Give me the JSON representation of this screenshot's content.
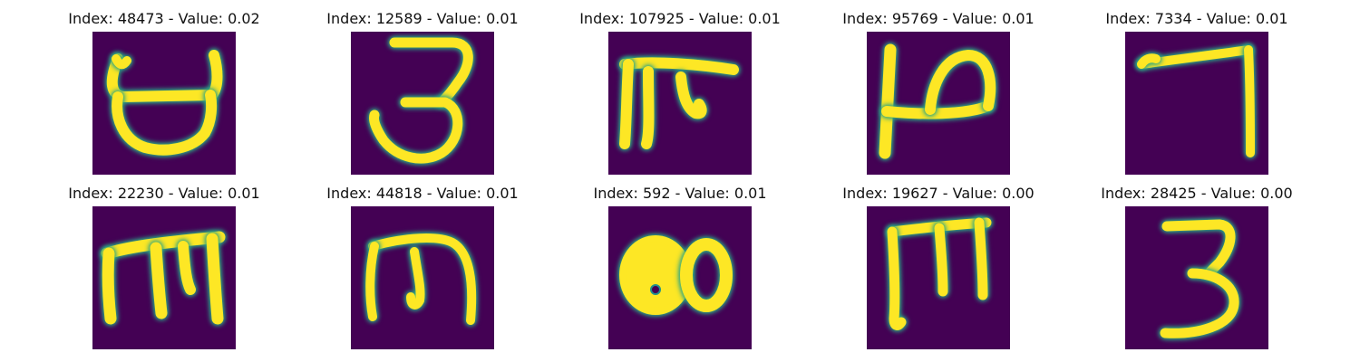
{
  "panels": [
    {
      "index_label": "Index: 48473 - Value: 0.02"
    },
    {
      "index_label": "Index: 12589 - Value: 0.01"
    },
    {
      "index_label": "Index: 107925 - Value: 0.01"
    },
    {
      "index_label": "Index: 95769 - Value: 0.01"
    },
    {
      "index_label": "Index: 7334 - Value: 0.01"
    },
    {
      "index_label": "Index: 22230 - Value: 0.01"
    },
    {
      "index_label": "Index: 44818 - Value: 0.01"
    },
    {
      "index_label": "Index: 592 - Value: 0.01"
    },
    {
      "index_label": "Index: 19627 - Value: 0.00"
    },
    {
      "index_label": "Index: 28425 - Value: 0.00"
    }
  ],
  "colors": {
    "background": "#440154",
    "stroke": "#fde725",
    "edge": "#21918c"
  }
}
